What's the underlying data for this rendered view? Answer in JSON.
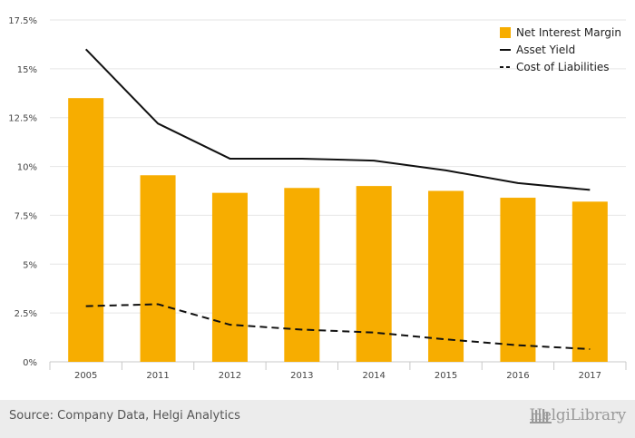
{
  "chart_data": {
    "type": "bar",
    "categories": [
      "2005",
      "2011",
      "2012",
      "2013",
      "2014",
      "2015",
      "2016",
      "2017"
    ],
    "series": [
      {
        "name": "Net Interest Margin",
        "kind": "bar",
        "color": "#f7ad00",
        "values": [
          13.5,
          9.55,
          8.65,
          8.9,
          9.0,
          8.75,
          8.4,
          8.2
        ]
      },
      {
        "name": "Asset Yield",
        "kind": "line",
        "style": "solid",
        "color": "#111111",
        "values": [
          16.0,
          12.2,
          10.4,
          10.4,
          10.3,
          9.8,
          9.15,
          8.8
        ]
      },
      {
        "name": "Cost of Liabilities",
        "kind": "line",
        "style": "dashed",
        "color": "#111111",
        "values": [
          2.85,
          2.95,
          1.9,
          1.65,
          1.5,
          1.15,
          0.85,
          0.65
        ]
      }
    ],
    "ylim": [
      0,
      17.5
    ],
    "yticks": [
      0,
      2.5,
      5,
      7.5,
      10,
      12.5,
      15,
      17.5
    ],
    "ytick_labels": [
      "0%",
      "2.5%",
      "5%",
      "7.5%",
      "10%",
      "12.5%",
      "15%",
      "17.5%"
    ],
    "grid": "horizontal",
    "legend_position": "top-right",
    "title": "",
    "xlabel": "",
    "ylabel": ""
  },
  "footer": {
    "source": "Source: Company Data, Helgi Analytics",
    "brand": "HelgiLibrary"
  }
}
